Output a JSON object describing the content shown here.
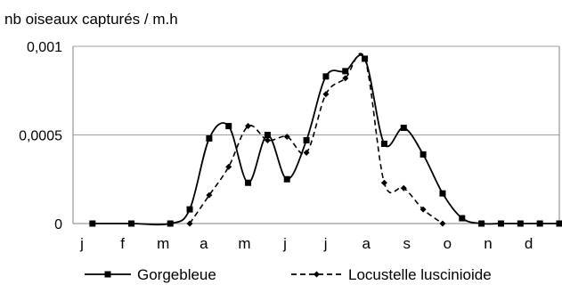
{
  "chart_data": {
    "type": "line",
    "ylabel": "nb oiseaux capturés / m.h",
    "categories": [
      "j",
      "f",
      "m",
      "a",
      "m",
      "j",
      "j",
      "a",
      "s",
      "o",
      "n",
      "d"
    ],
    "yticks": [
      "0",
      "0,0005",
      "0,001"
    ],
    "ylim": [
      0,
      0.001
    ],
    "grid": "horizontal",
    "legend_position": "bottom",
    "series": [
      {
        "name": "Gorgebleue",
        "style": "solid",
        "marker": "square",
        "color": "#000000",
        "points": [
          [
            0.0,
            0
          ],
          [
            1.0,
            0
          ],
          [
            2.0,
            0
          ],
          [
            2.5,
            8e-05
          ],
          [
            3.0,
            0.00048
          ],
          [
            3.5,
            0.00055
          ],
          [
            4.0,
            0.00023
          ],
          [
            4.5,
            0.0005
          ],
          [
            5.0,
            0.00025
          ],
          [
            5.5,
            0.00047
          ],
          [
            6.0,
            0.00083
          ],
          [
            6.5,
            0.00086
          ],
          [
            7.0,
            0.00093
          ],
          [
            7.5,
            0.00045
          ],
          [
            8.0,
            0.00054
          ],
          [
            8.5,
            0.00039
          ],
          [
            9.0,
            0.00017
          ],
          [
            9.5,
            3e-05
          ],
          [
            10.0,
            0
          ],
          [
            10.5,
            0
          ],
          [
            11.0,
            0
          ],
          [
            11.5,
            0
          ],
          [
            12.0,
            0
          ],
          [
            12.5,
            0
          ]
        ]
      },
      {
        "name": "Locustelle luscinioide",
        "style": "dashed",
        "marker": "diamond",
        "color": "#000000",
        "points": [
          [
            2.5,
            0
          ],
          [
            3.0,
            0.00016
          ],
          [
            3.5,
            0.00032
          ],
          [
            4.0,
            0.00055
          ],
          [
            4.5,
            0.00047
          ],
          [
            5.0,
            0.00049
          ],
          [
            5.5,
            0.0004
          ],
          [
            6.0,
            0.00073
          ],
          [
            6.5,
            0.00082
          ],
          [
            7.0,
            0.00093
          ],
          [
            7.5,
            0.00023
          ],
          [
            8.0,
            0.0002
          ],
          [
            8.5,
            8e-05
          ],
          [
            9.0,
            0
          ]
        ]
      }
    ]
  }
}
